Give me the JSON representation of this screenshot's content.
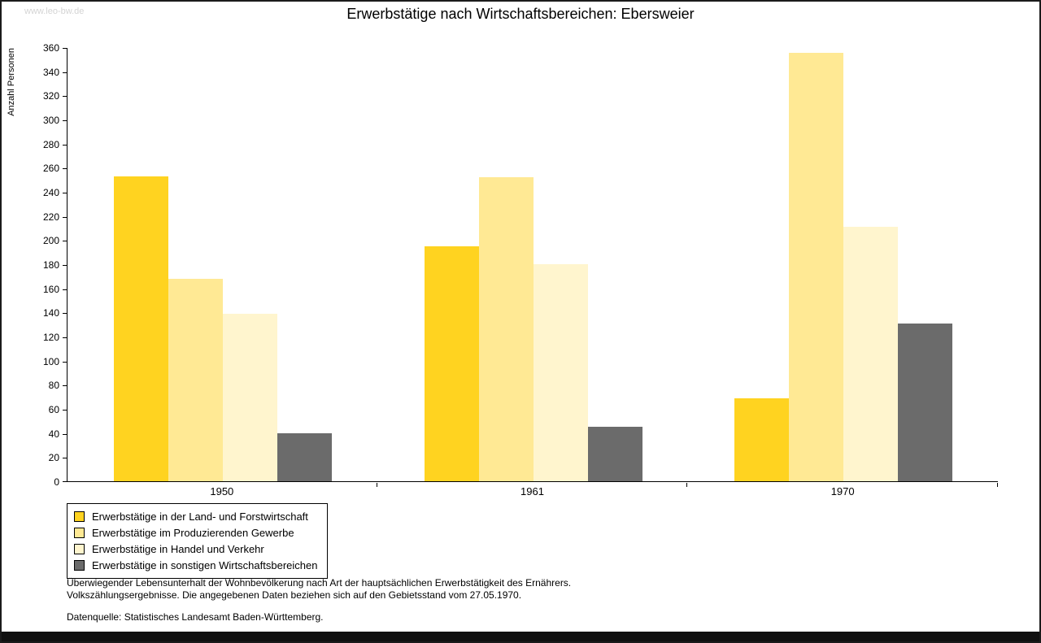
{
  "watermark": "www.leo-bw.de",
  "chart_data": {
    "type": "bar",
    "title": "Erwerbstätige nach Wirtschaftsbereichen: Ebersweier",
    "ylabel": "Anzahl Personen",
    "xlabel": "",
    "categories": [
      "1950",
      "1961",
      "1970"
    ],
    "series": [
      {
        "name": "Erwerbstätige in der Land- und Forstwirtschaft",
        "color": "#ffd320",
        "values": [
          253,
          195,
          69
        ]
      },
      {
        "name": "Erwerbstätige im Produzierenden Gewerbe",
        "color": "#ffe994",
        "values": [
          168,
          252,
          355
        ]
      },
      {
        "name": "Erwerbstätige in Handel und Verkehr",
        "color": "#fff5ce",
        "values": [
          139,
          180,
          211
        ]
      },
      {
        "name": "Erwerbstätige in sonstigen Wirtschaftsbereichen",
        "color": "#6b6b6b",
        "values": [
          40,
          45,
          131
        ]
      }
    ],
    "ylim": [
      0,
      360
    ],
    "ytick_step": 20,
    "grid": false,
    "legend_position": "bottom-left"
  },
  "footnotes": {
    "line1": "Überwiegender Lebensunterhalt der Wohnbevölkerung nach Art der hauptsächlichen Erwerbstätigkeit des Ernährers.",
    "line2": "Volkszählungsergebnisse. Die angegebenen Daten beziehen sich auf den Gebietsstand vom 27.05.1970.",
    "datasource": "Datenquelle: Statistisches Landesamt Baden-Württemberg."
  }
}
